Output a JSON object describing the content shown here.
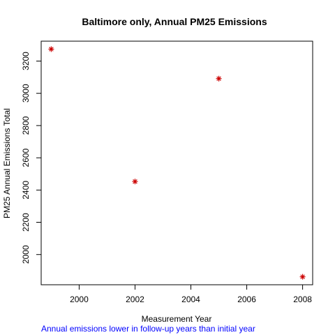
{
  "chart_data": {
    "type": "scatter",
    "title": "Baltimore only, Annual PM25 Emissions",
    "xlabel": "Measurement Year",
    "ylabel": "PM25 Annual Emissions Total",
    "x": [
      1999,
      2002,
      2005,
      2008
    ],
    "y": [
      3274,
      2453,
      3091,
      1862
    ],
    "marker": "*",
    "marker_color": "#cc0000",
    "xlim": [
      1998.64,
      2008.36
    ],
    "ylim": [
      1812.6,
      3323.4
    ],
    "x_ticks": [
      2000,
      2002,
      2004,
      2006,
      2008
    ],
    "y_ticks": [
      2000,
      2200,
      2400,
      2600,
      2800,
      3000,
      3200
    ],
    "grid": false,
    "legend": "none"
  },
  "caption": {
    "text": "Annual emissions lower in follow-up years than initial year",
    "color": "#0000ff"
  }
}
